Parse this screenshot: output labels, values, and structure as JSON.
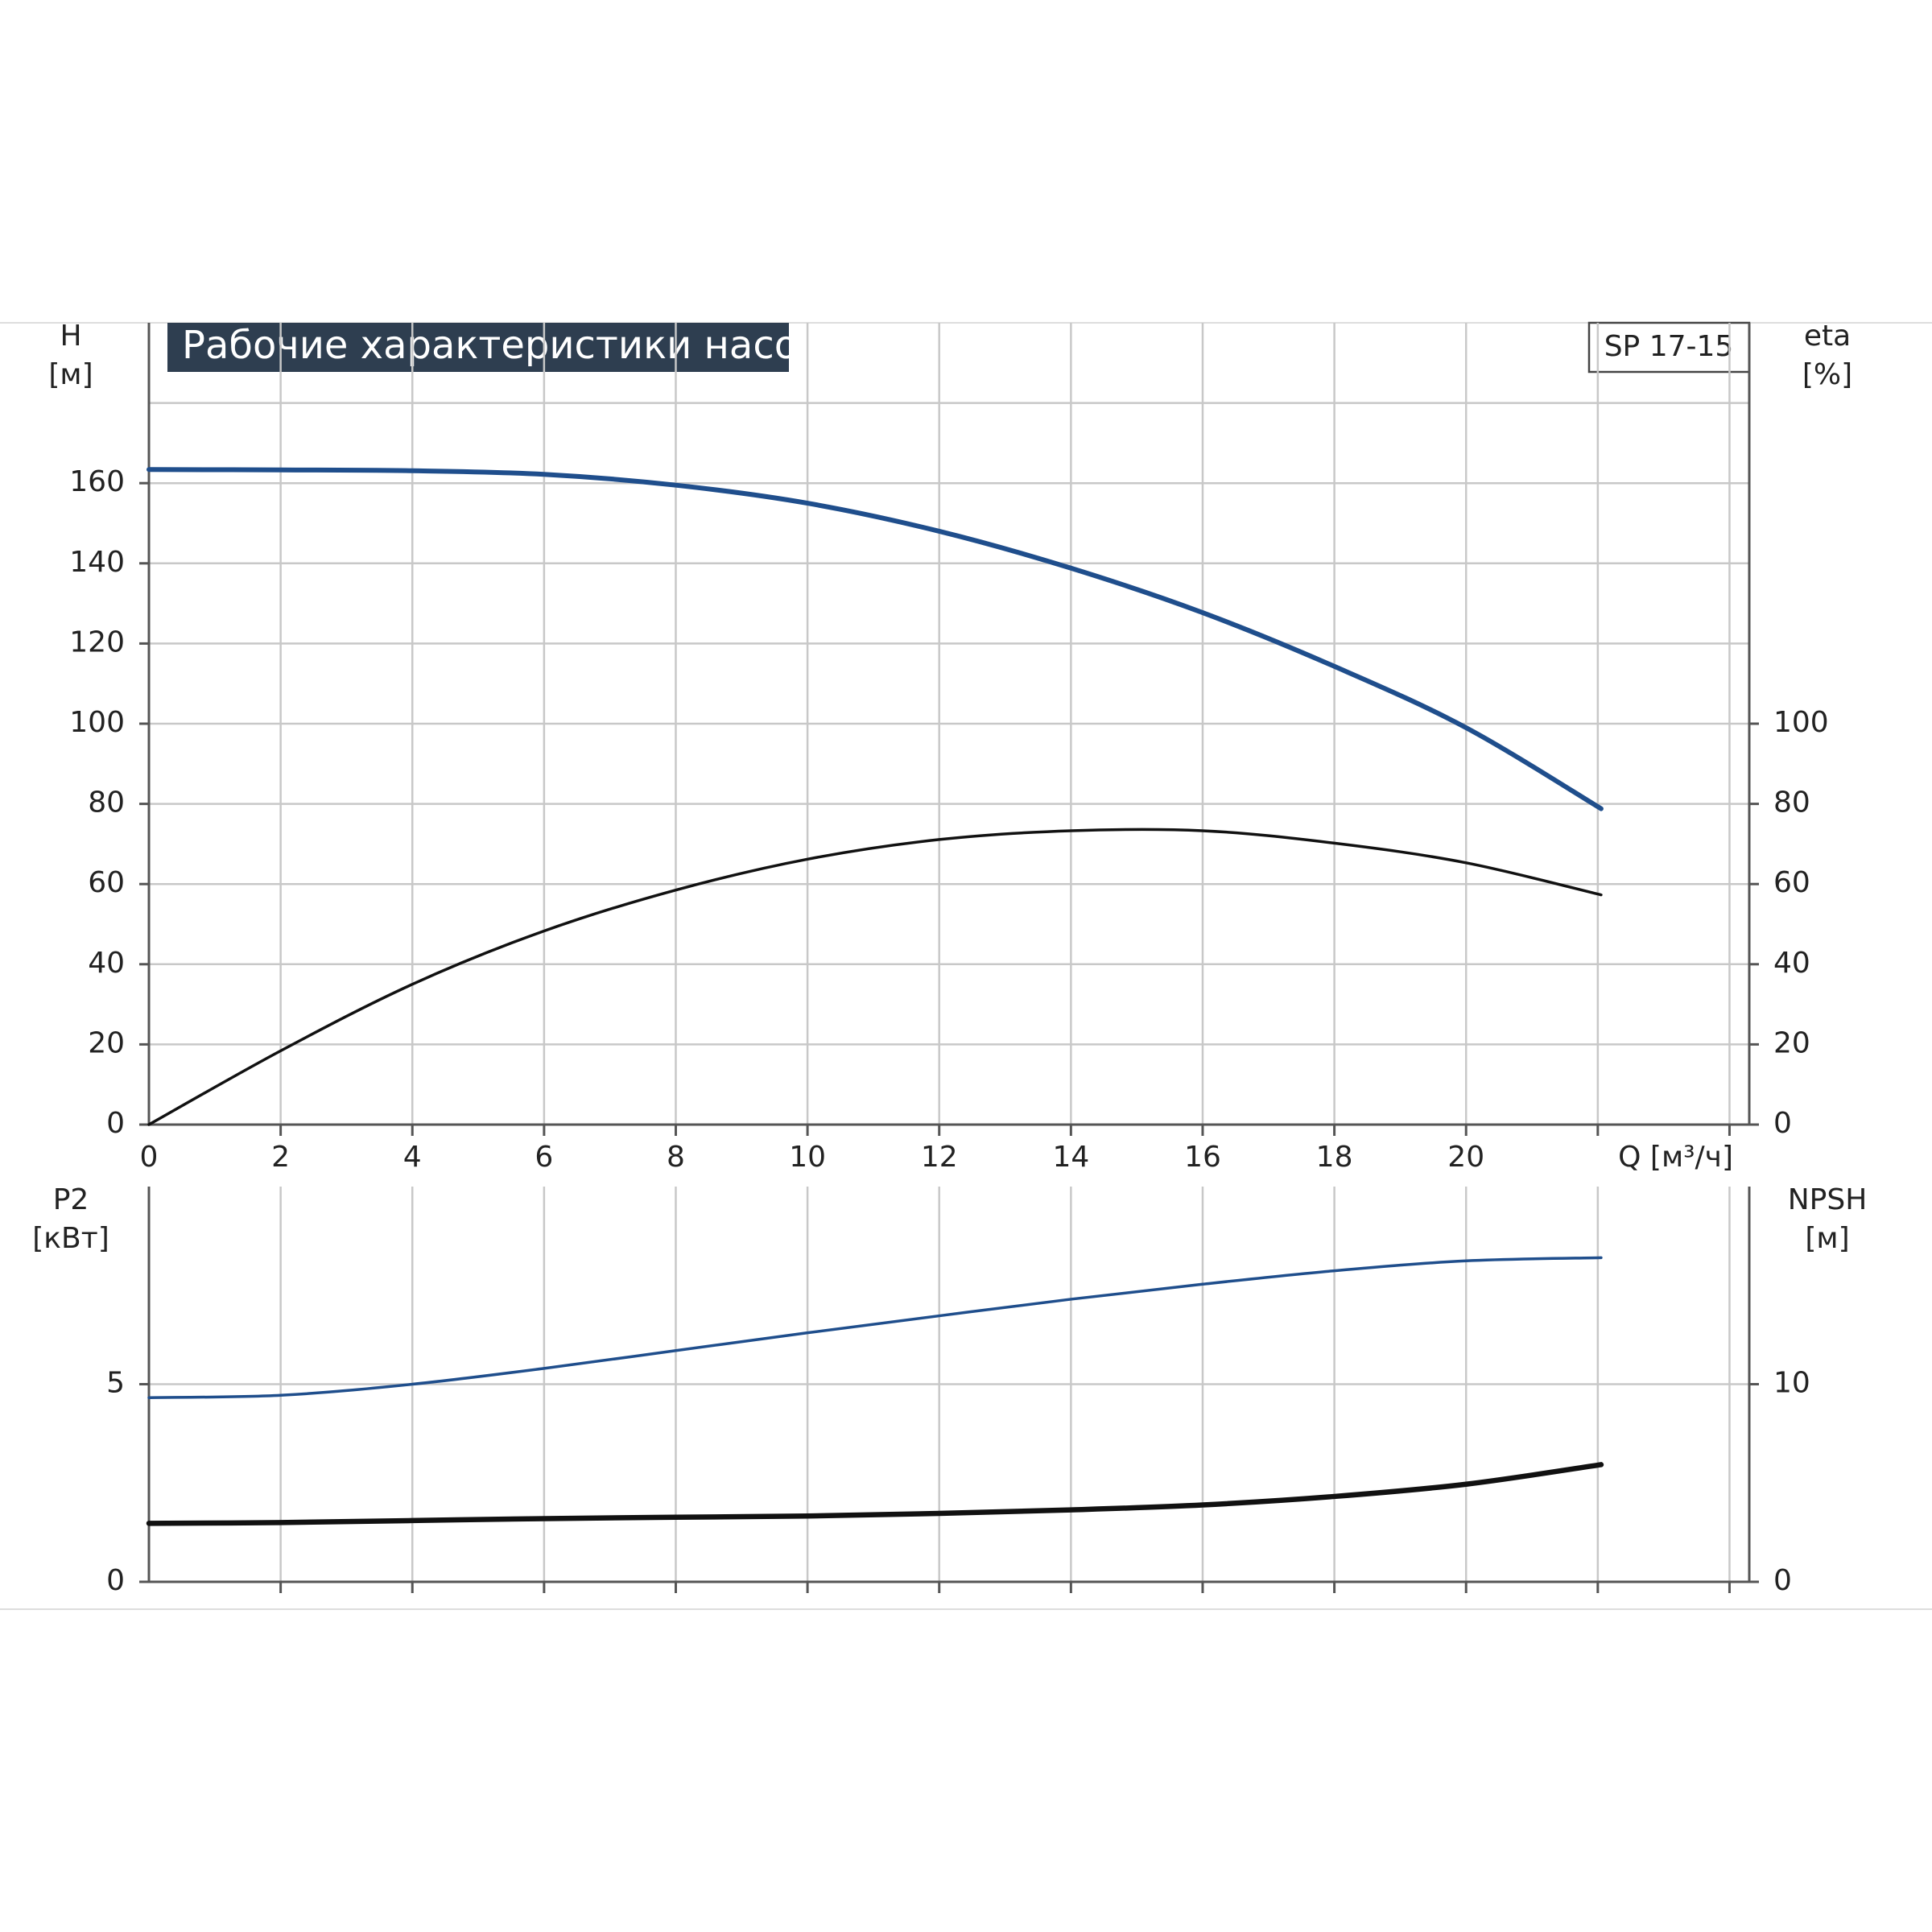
{
  "chart_data": [
    {
      "type": "line",
      "title": "Рабочие характеристики насоса",
      "model": "SP 17-15",
      "y_label": "H",
      "y_unit": "[м]",
      "y2_label": "eta",
      "y2_unit": "[%]",
      "x_label": "Q [м³/ч]",
      "x": [
        0,
        2,
        4,
        6,
        8,
        10,
        12,
        14,
        16,
        18,
        20,
        22.05
      ],
      "xlim": [
        0,
        24.3
      ],
      "xticks": [
        0,
        2,
        4,
        6,
        8,
        10,
        12,
        14,
        16,
        18,
        20
      ],
      "xgrid": [
        2,
        4,
        6,
        8,
        10,
        12,
        14,
        16,
        18,
        20,
        22,
        24
      ],
      "ylim": [
        0,
        200
      ],
      "yticks": [
        0,
        20,
        40,
        60,
        80,
        100,
        120,
        140,
        160
      ],
      "ygrid": [
        20,
        40,
        60,
        80,
        100,
        120,
        140,
        160,
        180
      ],
      "y2lim": [
        0,
        200
      ],
      "y2ticks": [
        0,
        20,
        40,
        60,
        80,
        100
      ],
      "series": [
        {
          "name": "H",
          "color": "#1f4e8c",
          "width": 6,
          "values": [
            163.4,
            163.3,
            163.1,
            162.2,
            159.5,
            155,
            148,
            138.8,
            127.7,
            114.3,
            99,
            78.8
          ]
        },
        {
          "name": "eta",
          "color": "#111111",
          "width": 3.5,
          "axis": "y2",
          "values": [
            0,
            18.4,
            35,
            48.3,
            58.5,
            66.2,
            71.1,
            73.3,
            73.3,
            70.2,
            65.3,
            57.3
          ]
        }
      ]
    },
    {
      "type": "line",
      "y_label": "P2",
      "y_unit": "[кВт]",
      "y2_label": "NPSH",
      "y2_unit": "[м]",
      "x": [
        0,
        2,
        4,
        6,
        8,
        10,
        12,
        14,
        16,
        18,
        20,
        22.05
      ],
      "xlim": [
        0,
        24.3
      ],
      "xgrid": [
        2,
        4,
        6,
        8,
        10,
        12,
        14,
        16,
        18,
        20,
        22,
        24
      ],
      "ylim": [
        0,
        10
      ],
      "yticks": [
        0,
        5
      ],
      "ygrid": [
        5
      ],
      "y2lim": [
        0,
        20
      ],
      "y2ticks": [
        0,
        10
      ],
      "series": [
        {
          "name": "P2",
          "color": "#1f4e8c",
          "width": 3.5,
          "values": [
            4.66,
            4.72,
            5.0,
            5.4,
            5.85,
            6.3,
            6.73,
            7.15,
            7.53,
            7.87,
            8.12,
            8.2
          ]
        },
        {
          "name": "NPSH",
          "color": "#111111",
          "width": 6.5,
          "axis": "y2",
          "values": [
            2.96,
            3.0,
            3.1,
            3.2,
            3.27,
            3.33,
            3.46,
            3.64,
            3.89,
            4.32,
            4.94,
            5.93
          ]
        }
      ]
    }
  ]
}
